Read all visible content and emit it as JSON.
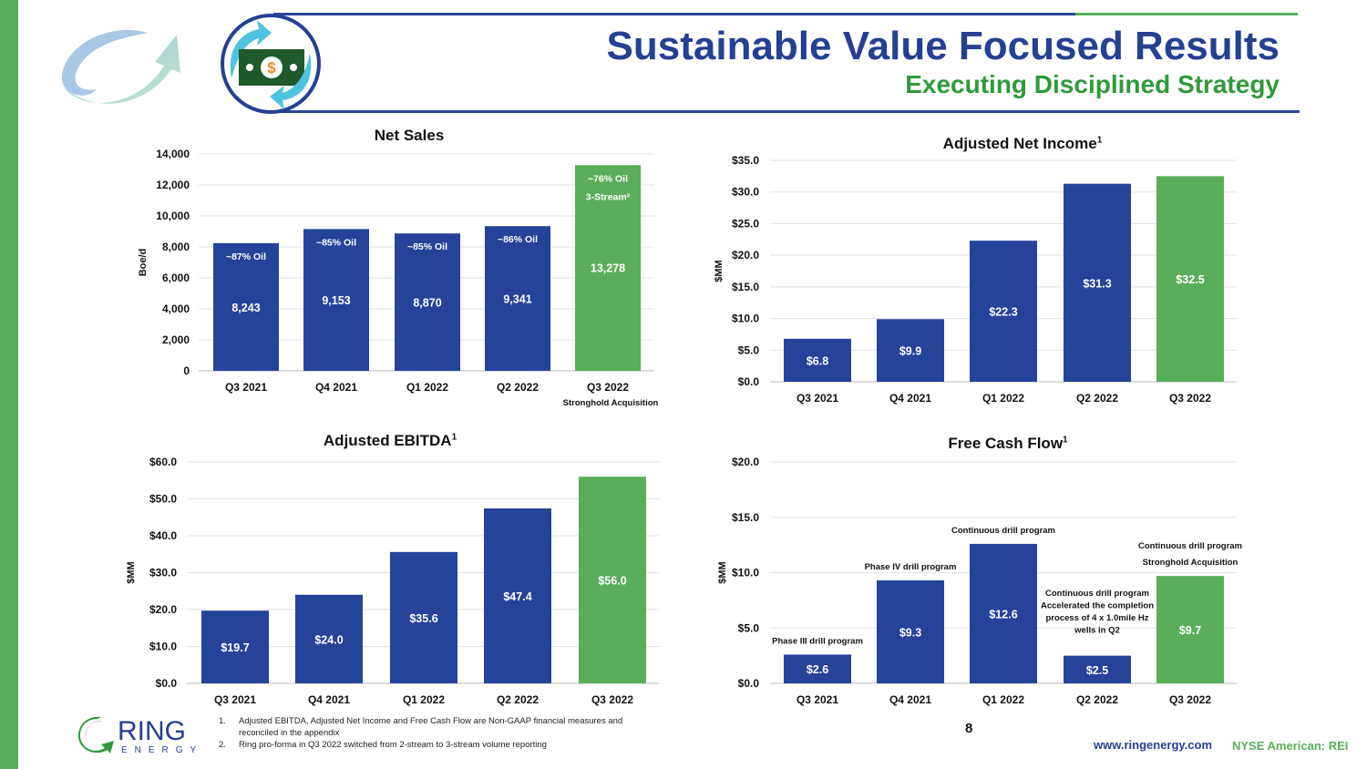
{
  "header": {
    "title": "Sustainable Value Focused Results",
    "subtitle": "Executing Disciplined Strategy"
  },
  "colors": {
    "primary": "#253f93",
    "bar_blue": "#26439a",
    "bar_green": "#5aae5a",
    "accent_green": "#2f9a3a"
  },
  "icons": [
    "circular-arrow-icon",
    "money-exchange-icon",
    "ring-energy-logo"
  ],
  "logo": {
    "name": "RING",
    "tagline": "ENERGY"
  },
  "chart_data": [
    {
      "id": "net-sales",
      "type": "bar",
      "title": "Net Sales",
      "title_sup": "",
      "ylabel": "Boe/d",
      "ylim": [
        0,
        14000
      ],
      "yticks": [
        0,
        2000,
        4000,
        6000,
        8000,
        10000,
        12000,
        14000
      ],
      "ytick_labels": [
        "0",
        "2,000",
        "4,000",
        "6,000",
        "8,000",
        "10,000",
        "12,000",
        "14,000"
      ],
      "categories": [
        "Q3 2021",
        "Q4 2021",
        "Q1 2022",
        "Q2 2022",
        "Q3 2022"
      ],
      "category_sublabels": [
        "",
        "",
        "",
        "",
        "Stronghold Acquisition"
      ],
      "values": [
        8243,
        9153,
        8870,
        9341,
        13278
      ],
      "data_labels": [
        "8,243",
        "9,153",
        "8,870",
        "9,341",
        "13,278"
      ],
      "bar_colors": [
        "blue",
        "blue",
        "blue",
        "blue",
        "green"
      ],
      "annotations": [
        [
          "~87% Oil"
        ],
        [
          "~85% Oil"
        ],
        [
          "~85% Oil"
        ],
        [
          "~86% Oil"
        ],
        [
          "~76% Oil",
          "3-Stream²"
        ]
      ],
      "annotation_position": "inside-top",
      "grid": true
    },
    {
      "id": "adjusted-net-income",
      "type": "bar",
      "title": "Adjusted Net Income",
      "title_sup": "1",
      "ylabel": "$MM",
      "ylim": [
        0,
        35
      ],
      "yticks": [
        0,
        5,
        10,
        15,
        20,
        25,
        30,
        35
      ],
      "ytick_labels": [
        "$0.0",
        "$5.0",
        "$10.0",
        "$15.0",
        "$20.0",
        "$25.0",
        "$30.0",
        "$35.0"
      ],
      "categories": [
        "Q3 2021",
        "Q4 2021",
        "Q1 2022",
        "Q2 2022",
        "Q3 2022"
      ],
      "category_sublabels": [
        "",
        "",
        "",
        "",
        ""
      ],
      "values": [
        6.8,
        9.9,
        22.3,
        31.3,
        32.5
      ],
      "data_labels": [
        "$6.8",
        "$9.9",
        "$22.3",
        "$31.3",
        "$32.5"
      ],
      "bar_colors": [
        "blue",
        "blue",
        "blue",
        "blue",
        "green"
      ],
      "annotations": [
        [],
        [],
        [],
        [],
        []
      ],
      "grid": true
    },
    {
      "id": "adjusted-ebitda",
      "type": "bar",
      "title": "Adjusted EBITDA",
      "title_sup": "1",
      "ylabel": "$MM",
      "ylim": [
        0,
        60
      ],
      "yticks": [
        0,
        10,
        20,
        30,
        40,
        50,
        60
      ],
      "ytick_labels": [
        "$0.0",
        "$10.0",
        "$20.0",
        "$30.0",
        "$40.0",
        "$50.0",
        "$60.0"
      ],
      "categories": [
        "Q3 2021",
        "Q4 2021",
        "Q1 2022",
        "Q2 2022",
        "Q3 2022"
      ],
      "category_sublabels": [
        "",
        "",
        "",
        "",
        ""
      ],
      "values": [
        19.7,
        24.0,
        35.6,
        47.4,
        56.0
      ],
      "data_labels": [
        "$19.7",
        "$24.0",
        "$35.6",
        "$47.4",
        "$56.0"
      ],
      "bar_colors": [
        "blue",
        "blue",
        "blue",
        "blue",
        "green"
      ],
      "annotations": [
        [],
        [],
        [],
        [],
        []
      ],
      "grid": true
    },
    {
      "id": "free-cash-flow",
      "type": "bar",
      "title": "Free Cash Flow",
      "title_sup": "1",
      "ylabel": "$MM",
      "ylim": [
        0,
        20
      ],
      "yticks": [
        0,
        5,
        10,
        15,
        20
      ],
      "ytick_labels": [
        "$0.0",
        "$5.0",
        "$10.0",
        "$15.0",
        "$20.0"
      ],
      "categories": [
        "Q3 2021",
        "Q4 2021",
        "Q1 2022",
        "Q2 2022",
        "Q3 2022"
      ],
      "category_sublabels": [
        "",
        "",
        "",
        "",
        ""
      ],
      "values": [
        2.6,
        9.3,
        12.6,
        2.5,
        9.7
      ],
      "data_labels": [
        "$2.6",
        "$9.3",
        "$12.6",
        "$2.5",
        "$9.7"
      ],
      "bar_colors": [
        "blue",
        "blue",
        "blue",
        "blue",
        "green"
      ],
      "annotations": [
        [
          "Phase III drill program"
        ],
        [
          "Phase IV drill program"
        ],
        [
          "Continuous drill program"
        ],
        [
          "Continuous drill program",
          "Accelerated the completion",
          "process of 4 x 1.0mile Hz",
          "wells in Q2"
        ],
        [
          "Continuous drill program",
          "Stronghold Acquisition"
        ]
      ],
      "annotation_position": "above",
      "grid": true
    }
  ],
  "footnotes": [
    {
      "num": "1.",
      "text": "Adjusted EBITDA, Adjusted Net Income and Free Cash Flow are Non-GAAP financial measures and reconciled in the appendix"
    },
    {
      "num": "2.",
      "text": "Ring pro-forma in Q3 2022 switched from 2-stream to 3-stream volume reporting"
    }
  ],
  "footer": {
    "page": "8",
    "url": "www.ringenergy.com",
    "ticker": "NYSE American: REI"
  }
}
